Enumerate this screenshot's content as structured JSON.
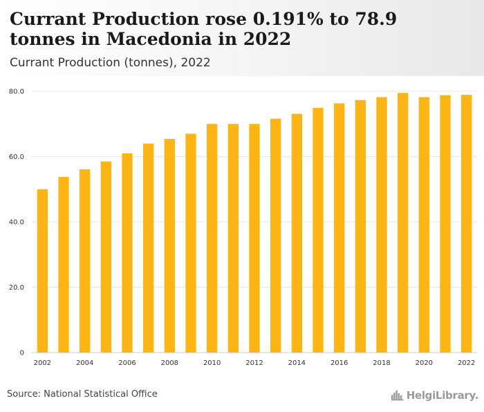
{
  "title": "Currant Production rose 0.191% to 78.9 tonnes in Macedonia in 2022",
  "subtitle": "Currant Production (tonnes), 2022",
  "source": "Source: National Statistical Office",
  "brand": "HelgiLibrary.",
  "icons": {
    "brand": "city-skyline-icon"
  },
  "colors": {
    "bar": "#FDB515",
    "grid": "#e6e6e6",
    "axis": "#cccccc"
  },
  "chart_data": {
    "type": "bar",
    "title": "Currant Production (tonnes), 2022",
    "xlabel": "",
    "ylabel": "",
    "categories": [
      "2002",
      "2003",
      "2004",
      "2005",
      "2006",
      "2007",
      "2008",
      "2009",
      "2010",
      "2011",
      "2012",
      "2013",
      "2014",
      "2015",
      "2016",
      "2017",
      "2018",
      "2019",
      "2020",
      "2021",
      "2022"
    ],
    "values": [
      50.0,
      53.8,
      56.1,
      58.5,
      61.0,
      64.0,
      65.4,
      67.0,
      70.0,
      70.0,
      70.0,
      71.6,
      73.1,
      74.9,
      76.3,
      77.3,
      78.2,
      79.5,
      78.2,
      78.8,
      78.9
    ],
    "x_tick_labels": [
      "2002",
      "2004",
      "2006",
      "2008",
      "2010",
      "2012",
      "2014",
      "2016",
      "2018",
      "2020",
      "2022"
    ],
    "y_ticks": [
      0,
      20,
      40,
      60,
      80
    ],
    "y_tick_labels": [
      "0",
      "20.0",
      "40.0",
      "60.0",
      "80.0"
    ],
    "ylim": [
      0,
      80
    ],
    "grid": true,
    "legend": "none"
  }
}
